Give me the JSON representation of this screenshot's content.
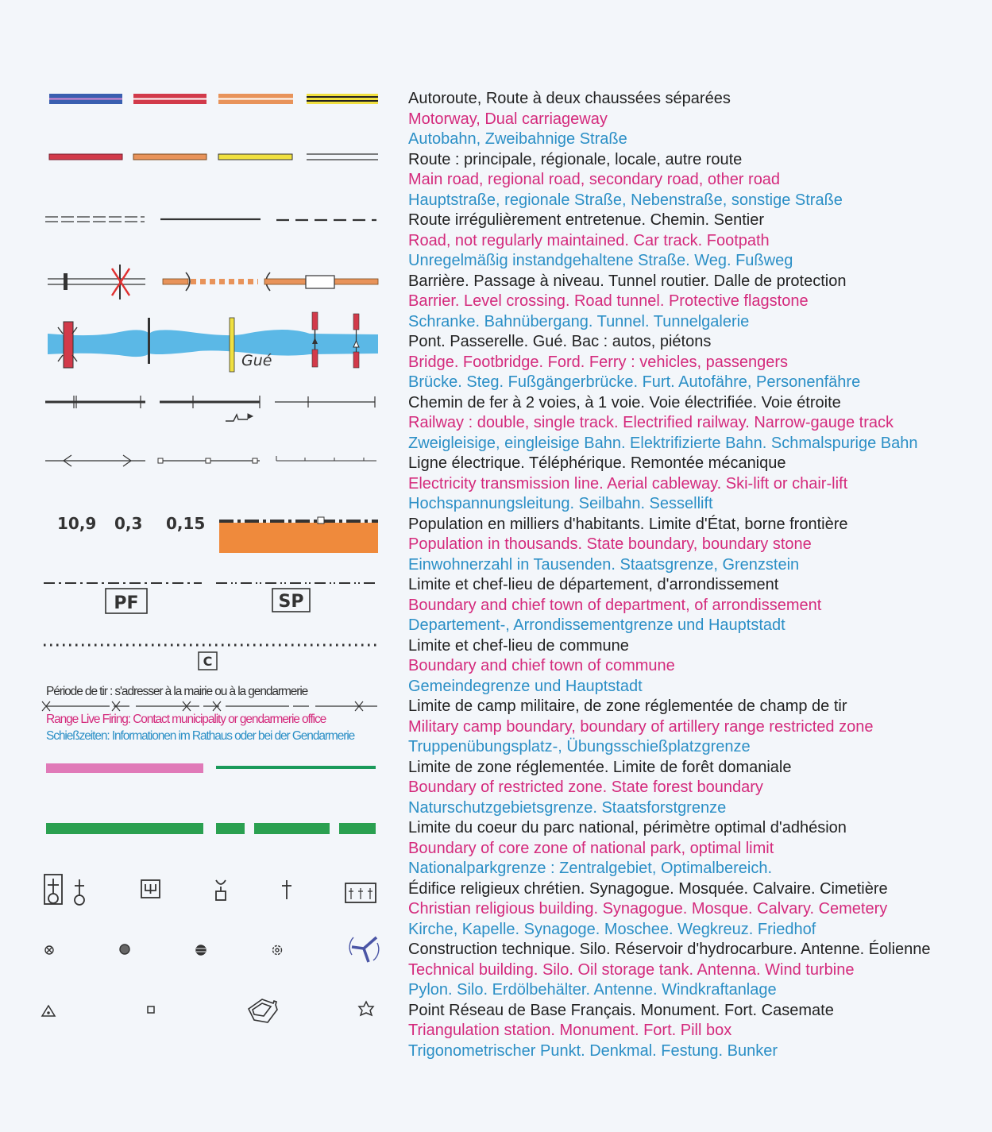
{
  "colors": {
    "french": "#222222",
    "english": "#d42a7c",
    "german": "#2b8fc6",
    "water": "#5bb8e6",
    "motorway": "#3a5fb0",
    "main_road": "#d23a4a",
    "regional_road": "#e8935a",
    "secondary_road": "#f0e040",
    "state_area": "#ef8a3c",
    "restricted_zone": "#e07ab8",
    "forest": "#1a9a5a",
    "park": "#2aa050"
  },
  "symbol_labels": {
    "ford": "Gué",
    "population": [
      "10,9",
      "0,3",
      "0,15"
    ],
    "prefecture": "PF",
    "subprefecture": "SP",
    "commune": "C",
    "firing_notes": [
      "Période de tir : s'adresser à la mairie ou à la gendarmerie",
      "Range Live Firing: Contact municipality or gendarmerie office",
      "Schießzeiten: Informationen im Rathaus oder bei der Gendarmerie"
    ]
  },
  "legend": [
    [
      "Autoroute, Route à deux chaussées séparées",
      "Motorway, Dual carriageway",
      "Autobahn, Zweibahnige Straße"
    ],
    [
      "Route : principale, régionale, locale, autre route",
      "Main road, regional road, secondary road, other road",
      "Hauptstraße, regionale Straße, Nebenstraße, sonstige Straße"
    ],
    [
      "Route irrégulièrement entretenue. Chemin. Sentier",
      "Road, not regularly maintained. Car track. Footpath",
      "Unregelmäßig instandgehaltene Straße. Weg. Fußweg"
    ],
    [
      "Barrière. Passage à niveau. Tunnel routier. Dalle de protection",
      "Barrier. Level crossing. Road tunnel. Protective flagstone",
      "Schranke. Bahnübergang. Tunnel. Tunnelgalerie"
    ],
    [
      "Pont. Passerelle. Gué. Bac : autos, piétons",
      "Bridge. Footbridge. Ford. Ferry : vehicles, passengers",
      "Brücke. Steg. Fußgängerbrücke. Furt. Autofähre, Personenfähre"
    ],
    [
      "Chemin de fer à 2 voies, à 1 voie. Voie électrifiée. Voie étroite",
      "Railway : double, single track. Electrified railway. Narrow-gauge track",
      "Zweigleisige, eingleisige Bahn. Elektrifizierte Bahn. Schmalspurige Bahn"
    ],
    [
      "Ligne électrique. Téléphérique. Remontée mécanique",
      "Electricity transmission line. Aerial cableway. Ski-lift or chair-lift",
      "Hochspannungsleitung. Seilbahn. Sessellift"
    ],
    [
      "Population en milliers d'habitants. Limite d'État, borne frontière",
      "Population in thousands. State boundary, boundary stone",
      "Einwohnerzahl in Tausenden. Staatsgrenze, Grenzstein"
    ],
    [
      "Limite et chef-lieu de département, d'arrondissement",
      "Boundary and chief town of department, of arrondissement",
      "Departement-, Arrondissementgrenze und Hauptstadt"
    ],
    [
      "Limite et chef-lieu de commune",
      "Boundary and chief town of commune",
      "Gemeindegrenze und Hauptstadt"
    ],
    [
      "Limite de camp militaire, de zone réglementée de champ de tir",
      "Military camp boundary, boundary of artillery range restricted zone",
      "Truppenübungsplatz-, Übungsschießplatzgrenze"
    ],
    [
      "Limite de zone réglementée. Limite de forêt domaniale",
      "Boundary of restricted zone. State forest boundary",
      "Naturschutzgebietsgrenze. Staatsforstgrenze"
    ],
    [
      "Limite du coeur du parc national, périmètre optimal d'adhésion",
      "Boundary of core zone of national park, optimal limit",
      "Nationalparkgrenze : Zentralgebiet, Optimalbereich."
    ],
    [
      "Édifice religieux chrétien. Synagogue. Mosquée. Calvaire. Cimetière",
      "Christian religious building. Synagogue. Mosque. Calvary. Cemetery",
      "Kirche, Kapelle. Synagoge. Moschee. Wegkreuz. Friedhof"
    ],
    [
      "Construction technique. Silo. Réservoir d'hydrocarbure. Antenne. Éolienne",
      "Technical building. Silo. Oil storage tank. Antenna. Wind turbine",
      "Pylon. Silo. Erdölbehälter. Antenne. Windkraftanlage"
    ],
    [
      "Point Réseau de Base Français. Monument. Fort. Casemate",
      "Triangulation station. Monument. Fort. Pill box",
      "Trigonometrischer Punkt. Denkmal. Festung. Bunker"
    ]
  ]
}
